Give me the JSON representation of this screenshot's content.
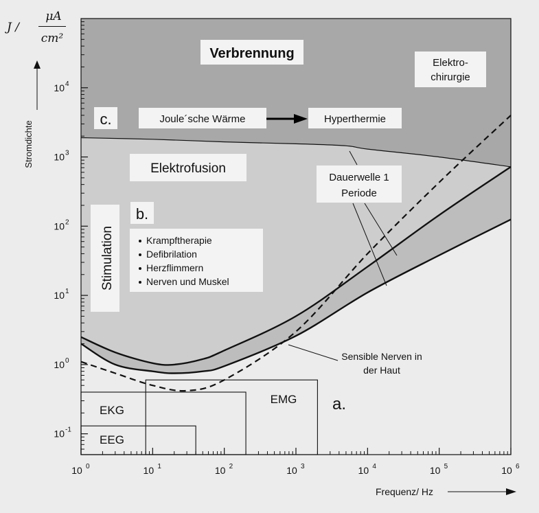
{
  "chart_data": {
    "type": "area",
    "x_scale": "log",
    "y_scale": "log",
    "xlim": [
      1,
      1000000
    ],
    "ylim": [
      0.05,
      100000
    ],
    "x_ticks": [
      {
        "value": 1,
        "base": "10",
        "exp": "0"
      },
      {
        "value": 10,
        "base": "10",
        "exp": "1"
      },
      {
        "value": 100,
        "base": "10",
        "exp": "2"
      },
      {
        "value": 1000,
        "base": "10",
        "exp": "3"
      },
      {
        "value": 10000,
        "base": "10",
        "exp": "4"
      },
      {
        "value": 100000,
        "base": "10",
        "exp": "5"
      },
      {
        "value": 1000000,
        "base": "10",
        "exp": "6"
      }
    ],
    "y_ticks": [
      {
        "value": 0.1,
        "base": "10",
        "exp": "-1"
      },
      {
        "value": 1,
        "base": "10",
        "exp": "0"
      },
      {
        "value": 10,
        "base": "10",
        "exp": "1"
      },
      {
        "value": 100,
        "base": "10",
        "exp": "2"
      },
      {
        "value": 1000,
        "base": "10",
        "exp": "3"
      },
      {
        "value": 10000,
        "base": "10",
        "exp": "4"
      }
    ],
    "xlabel": "Frequenz/ Hz",
    "ylabel": "Stromdichte",
    "ylabel_unit": {
      "symbol": "J /",
      "numerator": "μA",
      "denominator": "cm²"
    },
    "series": [
      {
        "style": "solid-thin",
        "x": [
          1,
          10,
          100,
          1000,
          5000,
          10000,
          100000,
          1000000
        ],
        "y": [
          1900,
          1800,
          1650,
          1550,
          1450,
          1300,
          1000,
          720
        ]
      },
      {
        "style": "solid-thick",
        "x": [
          1,
          3,
          10,
          20,
          50,
          100,
          1000,
          10000,
          100000,
          1000000
        ],
        "y": [
          2.5,
          1.5,
          1.05,
          1.0,
          1.2,
          1.6,
          5.0,
          26,
          145,
          720
        ]
      },
      {
        "style": "solid-thick",
        "x": [
          1,
          3,
          10,
          20,
          50,
          100,
          1000,
          10000,
          100000,
          1000000
        ],
        "y": [
          2.0,
          1.0,
          0.8,
          0.75,
          0.8,
          0.95,
          2.6,
          11,
          38,
          125
        ]
      },
      {
        "style": "dashed",
        "x": [
          1,
          3,
          10,
          30,
          100,
          1000,
          10000,
          100000,
          1000000
        ],
        "y": [
          1.1,
          0.75,
          0.5,
          0.42,
          0.6,
          3.0,
          40,
          430,
          4000
        ]
      }
    ],
    "regions": [
      {
        "name": "EKG",
        "x": [
          1,
          200
        ],
        "y": [
          0.05,
          0.4
        ]
      },
      {
        "name": "EEG",
        "x": [
          1,
          40
        ],
        "y": [
          0.05,
          0.13
        ]
      },
      {
        "name": "EMG",
        "x": [
          8,
          2000
        ],
        "y": [
          0.05,
          0.6
        ]
      }
    ],
    "labels": {
      "verbrennung": "Verbrennung",
      "elektrochirurgie_1": "Elektro-",
      "elektrochirurgie_2": "chirurgie",
      "c": "c.",
      "joule": "Joule´sche Wärme",
      "hyperthermie": "Hyperthermie",
      "elektrofusion": "Elektrofusion",
      "dauerwelle_1": "Dauerwelle 1",
      "dauerwelle_2": "Periode",
      "b": "b.",
      "stimulation": "Stimulation",
      "bullets": [
        "Krampftherapie",
        "Defibrilation",
        "Herzflimmern",
        "Nerven und Muskel"
      ],
      "sensible_1": "Sensible Nerven in",
      "sensible_2": "der Haut",
      "a": "a."
    },
    "colors": {
      "dark_region": "#a8a8a8",
      "medium_region": "#cdcdcd",
      "band_region": "#bdbdbd",
      "low_region": "#ececec",
      "label_box": "#f3f3f3"
    }
  }
}
